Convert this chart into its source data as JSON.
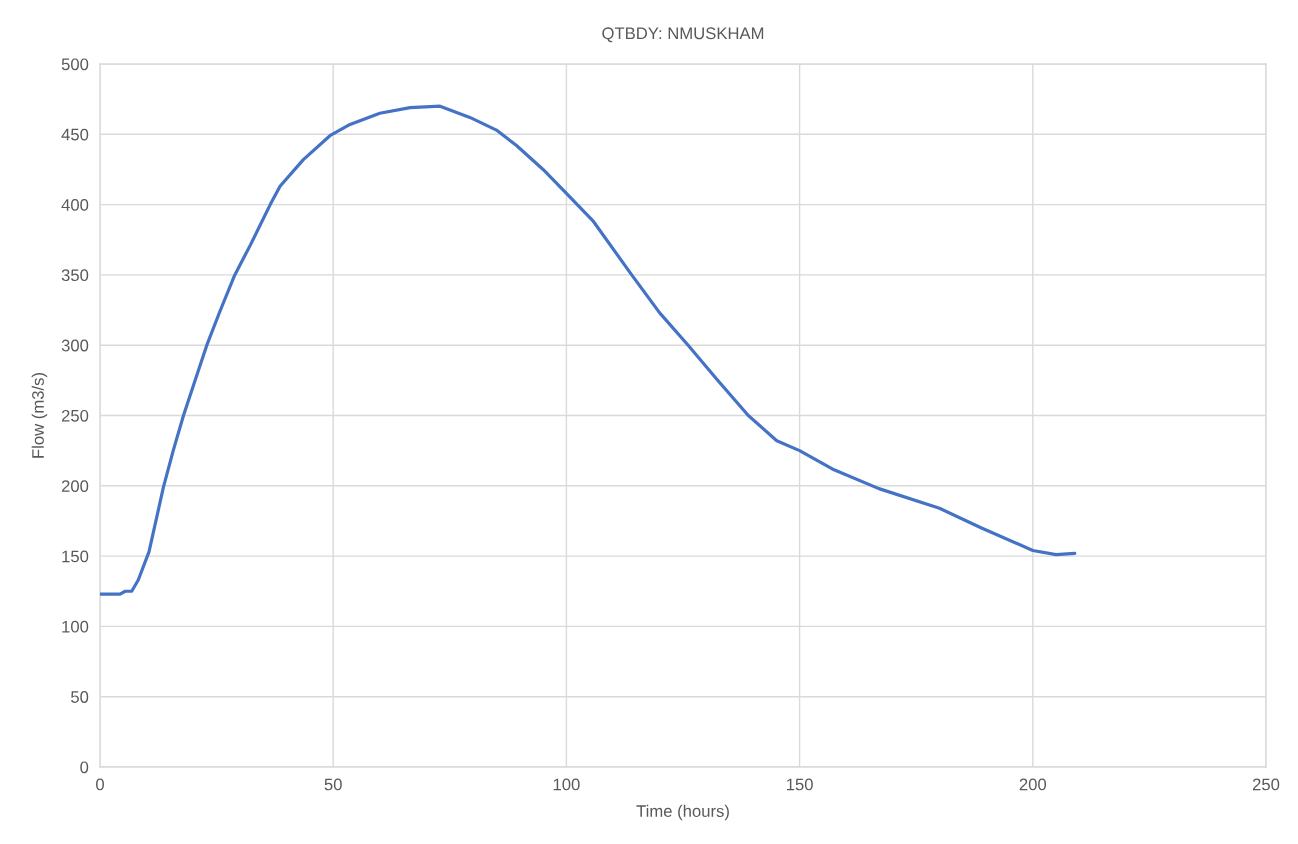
{
  "chart_data": {
    "type": "line",
    "title": "QTBDY: NMUSKHAM",
    "xlabel": "Time (hours)",
    "ylabel": "Flow (m3/s)",
    "x": [
      0,
      4.3,
      5.4,
      6.8,
      8.2,
      10.5,
      13.6,
      15.7,
      17.9,
      20.4,
      22.9,
      25.7,
      28.9,
      32.2,
      36.5,
      38.6,
      43.6,
      49.3,
      53.6,
      60,
      66.5,
      72.9,
      79.3,
      85,
      89.3,
      95,
      100,
      105.8,
      114,
      120,
      126.1,
      132.2,
      139,
      145.1,
      150,
      157,
      167,
      180,
      189,
      200,
      205,
      209
    ],
    "series": [
      {
        "color": "#4472c4",
        "values": [
          123,
          123,
          125,
          125,
          133,
          153,
          199,
          225,
          250,
          275,
          300,
          324,
          350,
          371,
          400,
          413,
          432,
          449,
          457,
          465,
          469,
          470,
          462,
          453,
          442,
          425,
          408,
          388,
          350,
          323,
          300,
          276,
          250,
          232,
          225,
          212,
          198,
          184,
          170,
          154,
          151,
          152
        ]
      }
    ],
    "xlim": [
      0,
      250
    ],
    "xticks": [
      0,
      50,
      100,
      150,
      200,
      250
    ],
    "ylim": [
      0,
      500
    ],
    "yticks": [
      0,
      50,
      100,
      150,
      200,
      250,
      300,
      350,
      400,
      450,
      500
    ],
    "grid": true,
    "marker": "none",
    "line_style": "solid"
  }
}
